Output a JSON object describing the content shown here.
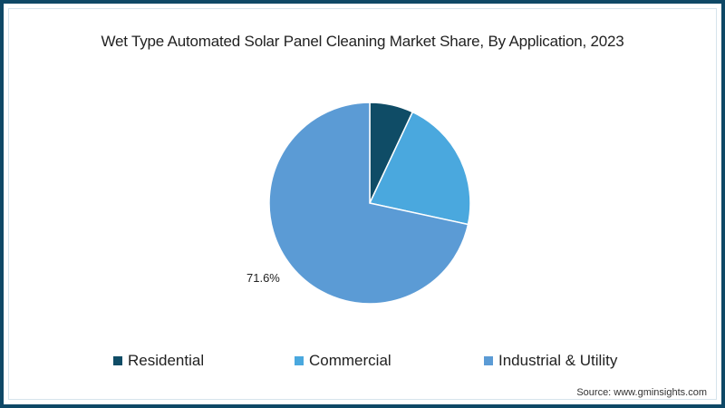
{
  "chart_data": {
    "type": "pie",
    "title": "Wet Type Automated Solar Panel Cleaning Market Share, By Application, 2023",
    "categories": [
      "Residential",
      "Commercial",
      "Industrial & Utility"
    ],
    "values": [
      7.0,
      21.4,
      71.6
    ],
    "colors": [
      "#0f4c66",
      "#4aa8de",
      "#5b9bd5"
    ],
    "start_angle_deg": 0,
    "direction": "clockwise",
    "data_labels": [
      {
        "category": "Industrial & Utility",
        "text": "71.6%"
      }
    ],
    "legend_position": "bottom",
    "source": "Source: www.gminsights.com"
  },
  "title": "Wet Type Automated Solar Panel Cleaning Market Share, By Application, 2023",
  "label_industrial": "71.6%",
  "legend": [
    {
      "label": "Residential",
      "color": "#0f4c66"
    },
    {
      "label": "Commercial",
      "color": "#4aa8de"
    },
    {
      "label": "Industrial & Utility",
      "color": "#5b9bd5"
    }
  ],
  "source": "Source: www.gminsights.com"
}
